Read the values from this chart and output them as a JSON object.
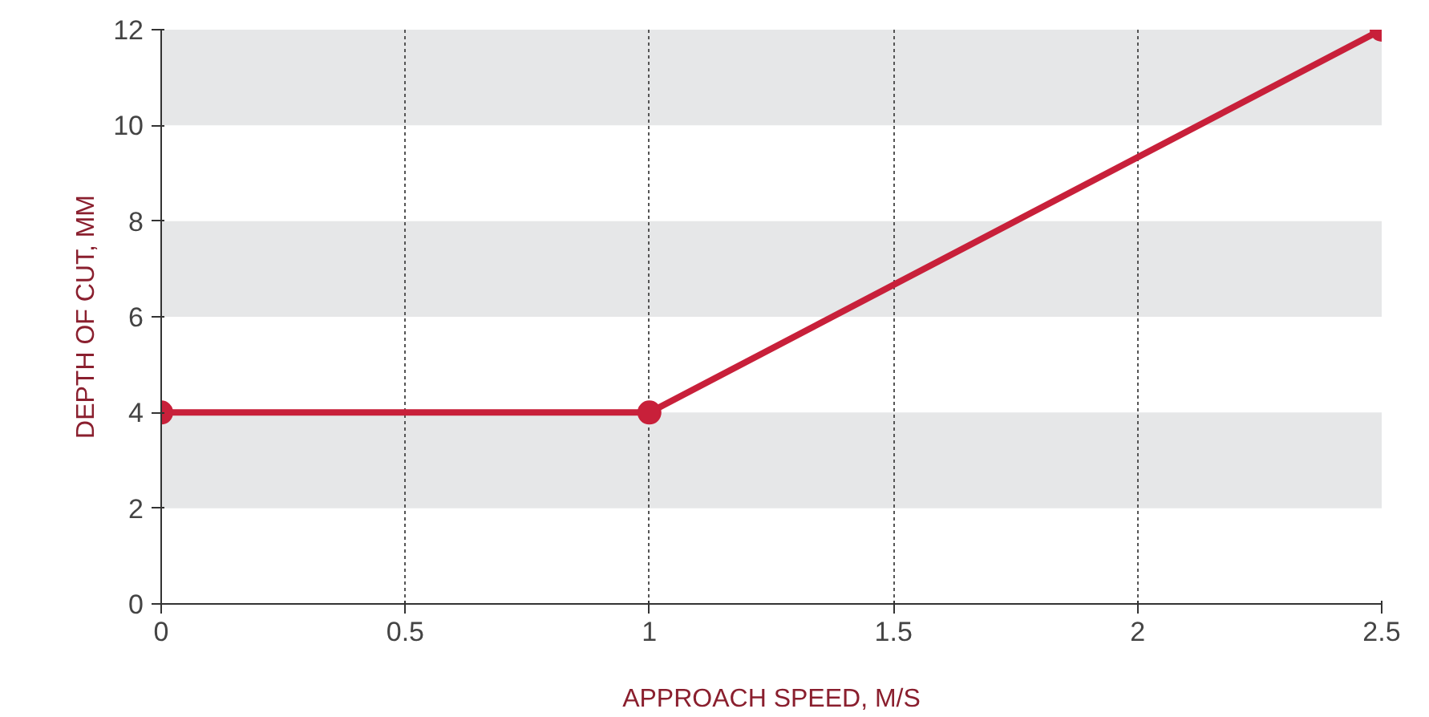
{
  "chart_data": {
    "type": "line",
    "xlabel": "APPROACH SPEED, M/S",
    "ylabel": "DEPTH OF CUT, MM",
    "x": [
      0,
      1,
      2.5
    ],
    "series": [
      {
        "color": "#c8203a",
        "values": [
          4,
          4,
          12
        ]
      }
    ],
    "xlim": [
      0,
      2.5
    ],
    "ylim": [
      0,
      12
    ],
    "xticks": [
      0,
      0.5,
      1,
      1.5,
      2,
      2.5
    ],
    "yticks": [
      0,
      2,
      4,
      6,
      8,
      10,
      12
    ],
    "grid": "x",
    "marker": "circle",
    "line_style": "solid",
    "bands": [
      {
        "axis": "y",
        "from": 2,
        "to": 4,
        "color": "#e6e7e8"
      },
      {
        "axis": "y",
        "from": 6,
        "to": 8,
        "color": "#e6e7e8"
      },
      {
        "axis": "y",
        "from": 10,
        "to": 12,
        "color": "#e6e7e8"
      }
    ]
  }
}
